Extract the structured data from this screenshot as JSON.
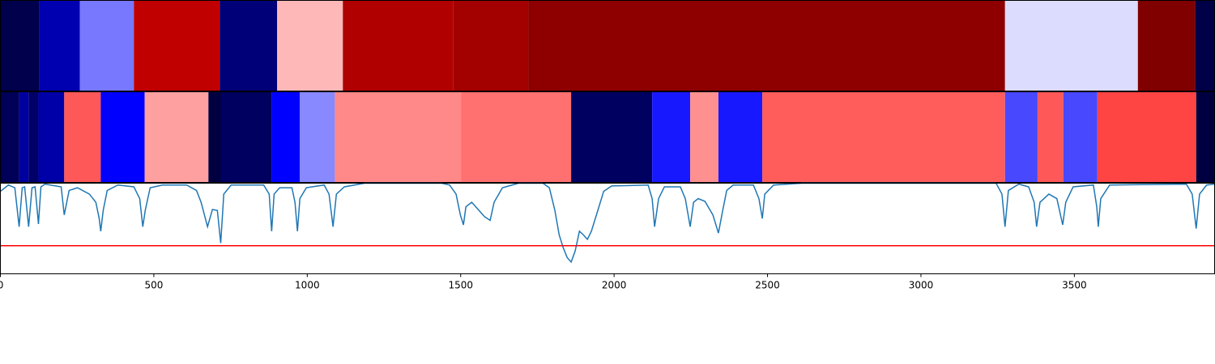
{
  "chart_data": [
    {
      "type": "strip",
      "xlim": [
        0,
        3957
      ],
      "edges": [
        0,
        127,
        259,
        435,
        715,
        902,
        1116,
        1475,
        1720,
        3274,
        3707,
        3894,
        3957
      ],
      "colors": [
        "#00004c",
        "#0000b0",
        "#7878ff",
        "#c00000",
        "#000078",
        "#ffb8b8",
        "#b00000",
        "#a30000",
        "#8e0000",
        "#dcdcff",
        "#800000",
        "#000048"
      ]
    },
    {
      "type": "strip",
      "xlim": [
        0,
        3957
      ],
      "edges": [
        0,
        61,
        92,
        124,
        208,
        327,
        470,
        678,
        718,
        884,
        976,
        1090,
        1501,
        1860,
        2124,
        2248,
        2340,
        2483,
        3274,
        3380,
        3464,
        3575,
        3897,
        3957
      ],
      "colors": [
        "#000058",
        "#0000a0",
        "#000068",
        "#0000a8",
        "#ff5858",
        "#0000ff",
        "#ffa0a0",
        "#000040",
        "#000060",
        "#0000ff",
        "#8888ff",
        "#ff8888",
        "#ff7070",
        "#000060",
        "#1818ff",
        "#ff9090",
        "#1818ff",
        "#ff5c5c",
        "#4848ff",
        "#ff5858",
        "#4848ff",
        "#ff4444",
        "#000040"
      ]
    },
    {
      "type": "line",
      "xlim": [
        0,
        3957
      ],
      "ylim": [
        0,
        1
      ],
      "xticks": [
        0,
        500,
        1000,
        1500,
        2000,
        2500,
        3000,
        3500
      ],
      "threshold": {
        "value": 0.31,
        "color": "#ff0000"
      },
      "x": [
        0,
        26,
        47,
        61,
        71,
        79,
        92,
        103,
        113,
        124,
        132,
        145,
        198,
        208,
        224,
        251,
        290,
        311,
        322,
        327,
        335,
        348,
        383,
        435,
        454,
        464,
        472,
        488,
        528,
        607,
        639,
        654,
        675,
        691,
        707,
        718,
        728,
        752,
        858,
        876,
        884,
        892,
        910,
        950,
        960,
        968,
        976,
        997,
        1055,
        1071,
        1084,
        1095,
        1121,
        1187,
        1438,
        1464,
        1485,
        1499,
        1509,
        1517,
        1536,
        1557,
        1578,
        1596,
        1609,
        1636,
        1689,
        1768,
        1789,
        1807,
        1821,
        1834,
        1847,
        1860,
        1873,
        1887,
        1900,
        1913,
        1926,
        1947,
        1966,
        1992,
        2111,
        2124,
        2132,
        2145,
        2164,
        2216,
        2232,
        2248,
        2259,
        2274,
        2296,
        2322,
        2340,
        2354,
        2367,
        2388,
        2454,
        2472,
        2483,
        2491,
        2520,
        2612,
        3245,
        3264,
        3274,
        3285,
        3319,
        3351,
        3369,
        3377,
        3388,
        3417,
        3443,
        3462,
        3472,
        3496,
        3562,
        3573,
        3578,
        3586,
        3615,
        3865,
        3884,
        3897,
        3908,
        3931,
        3957
      ],
      "series": [
        {
          "color": "#1f77b4",
          "values": [
            0.91,
            0.98,
            0.95,
            0.52,
            0.95,
            0.96,
            0.52,
            0.95,
            0.96,
            0.55,
            0.96,
            0.99,
            0.96,
            0.65,
            0.92,
            0.95,
            0.88,
            0.79,
            0.61,
            0.47,
            0.7,
            0.92,
            0.98,
            0.96,
            0.83,
            0.52,
            0.7,
            0.95,
            0.98,
            0.98,
            0.92,
            0.79,
            0.52,
            0.71,
            0.7,
            0.34,
            0.88,
            0.98,
            0.98,
            0.88,
            0.47,
            0.88,
            0.95,
            0.95,
            0.79,
            0.47,
            0.83,
            0.95,
            0.98,
            0.88,
            0.52,
            0.88,
            0.96,
            1.0,
            1.0,
            0.98,
            0.88,
            0.65,
            0.54,
            0.74,
            0.79,
            0.71,
            0.63,
            0.59,
            0.79,
            0.95,
            1.0,
            1.0,
            0.95,
            0.7,
            0.43,
            0.29,
            0.18,
            0.13,
            0.25,
            0.47,
            0.43,
            0.38,
            0.47,
            0.7,
            0.91,
            0.97,
            0.98,
            0.83,
            0.52,
            0.83,
            0.96,
            0.96,
            0.83,
            0.52,
            0.79,
            0.83,
            0.8,
            0.65,
            0.45,
            0.7,
            0.92,
            0.98,
            0.98,
            0.83,
            0.61,
            0.88,
            0.98,
            1.0,
            1.0,
            0.88,
            0.52,
            0.92,
            0.99,
            0.96,
            0.79,
            0.52,
            0.79,
            0.88,
            0.83,
            0.54,
            0.79,
            0.96,
            0.98,
            0.74,
            0.52,
            0.83,
            0.98,
            0.99,
            0.88,
            0.5,
            0.88,
            0.98,
            0.99
          ]
        }
      ]
    }
  ]
}
